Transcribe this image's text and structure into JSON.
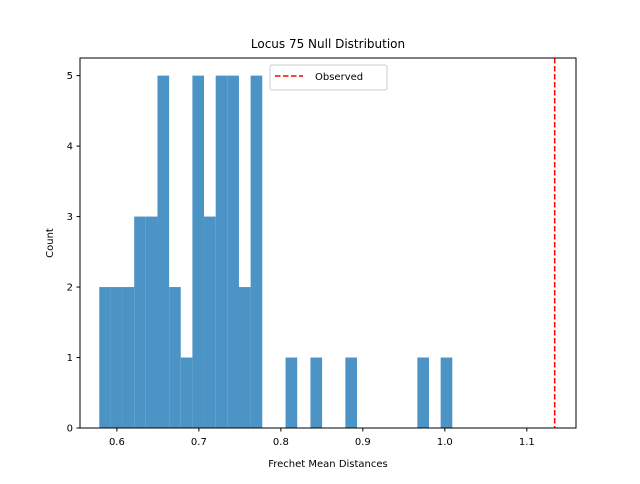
{
  "chart_data": {
    "type": "histogram",
    "title": "Locus 75 Null Distribution",
    "xlabel": "Frechet Mean Distances",
    "ylabel": "Count",
    "xlim": [
      0.555,
      1.16
    ],
    "ylim": [
      0,
      5.25
    ],
    "x_ticks": [
      0.6,
      0.7,
      0.8,
      0.9,
      1.0,
      1.1
    ],
    "x_tick_labels": [
      "0.6",
      "0.7",
      "0.8",
      "0.9",
      "1.0",
      "1.1"
    ],
    "y_ticks": [
      0,
      1,
      2,
      3,
      4,
      5
    ],
    "y_tick_labels": [
      "0",
      "1",
      "2",
      "3",
      "4",
      "5"
    ],
    "bar_color": "#4c94c6",
    "bins": [
      {
        "x0": 0.5785,
        "x1": 0.5927,
        "count": 2
      },
      {
        "x0": 0.5927,
        "x1": 0.6069,
        "count": 2
      },
      {
        "x0": 0.6069,
        "x1": 0.6211,
        "count": 2
      },
      {
        "x0": 0.6211,
        "x1": 0.6353,
        "count": 3
      },
      {
        "x0": 0.6353,
        "x1": 0.6495,
        "count": 3
      },
      {
        "x0": 0.6495,
        "x1": 0.6637,
        "count": 5
      },
      {
        "x0": 0.6637,
        "x1": 0.6779,
        "count": 2
      },
      {
        "x0": 0.6779,
        "x1": 0.6921,
        "count": 1
      },
      {
        "x0": 0.6921,
        "x1": 0.7063,
        "count": 5
      },
      {
        "x0": 0.7063,
        "x1": 0.7205,
        "count": 3
      },
      {
        "x0": 0.7205,
        "x1": 0.7347,
        "count": 5
      },
      {
        "x0": 0.7347,
        "x1": 0.7489,
        "count": 5
      },
      {
        "x0": 0.7489,
        "x1": 0.7631,
        "count": 2
      },
      {
        "x0": 0.7631,
        "x1": 0.7773,
        "count": 5
      },
      {
        "x0": 0.8057,
        "x1": 0.8199,
        "count": 1
      },
      {
        "x0": 0.8361,
        "x1": 0.8503,
        "count": 1
      },
      {
        "x0": 0.8787,
        "x1": 0.8929,
        "count": 1
      },
      {
        "x0": 0.9665,
        "x1": 0.9807,
        "count": 1
      },
      {
        "x0": 0.9949,
        "x1": 1.0091,
        "count": 1
      }
    ],
    "observed": {
      "value": 1.134,
      "label": "Observed",
      "color": "#ff0000",
      "style": "dashed"
    },
    "legend": {
      "placement": "top-center",
      "entries": [
        "Observed"
      ]
    },
    "grid": false
  }
}
